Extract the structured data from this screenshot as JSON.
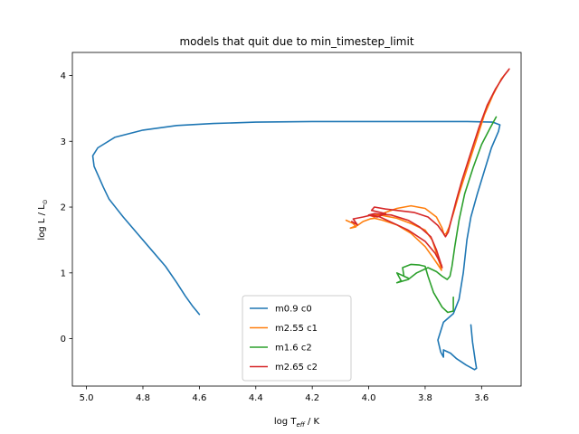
{
  "chart_data": {
    "type": "line",
    "title": "models that quit due to min_timestep_limit",
    "xlabel": {
      "prefix": "log T",
      "sub": "eff",
      "suffix": " / K"
    },
    "ylabel": {
      "prefix": "log L / L",
      "sub": "⊙"
    },
    "x_inverted": true,
    "xlim": [
      5.05,
      3.46
    ],
    "ylim": [
      -0.72,
      4.35
    ],
    "xticks": [
      5.0,
      4.8,
      4.6,
      4.4,
      4.2,
      4.0,
      3.8,
      3.6
    ],
    "xtick_labels": [
      "5.0",
      "4.8",
      "4.6",
      "4.4",
      "4.2",
      "4.0",
      "3.8",
      "3.6"
    ],
    "yticks": [
      0,
      1,
      2,
      3,
      4
    ],
    "ytick_labels": [
      "0",
      "1",
      "2",
      "3",
      "4"
    ],
    "legend_position": "lower-center",
    "series": [
      {
        "name": "m0.9 c0",
        "color": "#1f77b4",
        "points": [
          [
            3.638,
            0.21
          ],
          [
            3.632,
            -0.05
          ],
          [
            3.622,
            -0.35
          ],
          [
            3.618,
            -0.45
          ],
          [
            3.625,
            -0.47
          ],
          [
            3.655,
            -0.4
          ],
          [
            3.69,
            -0.3
          ],
          [
            3.71,
            -0.22
          ],
          [
            3.735,
            -0.17
          ],
          [
            3.735,
            -0.28
          ],
          [
            3.745,
            -0.2
          ],
          [
            3.755,
            -0.02
          ],
          [
            3.735,
            0.25
          ],
          [
            3.7,
            0.38
          ],
          [
            3.68,
            0.6
          ],
          [
            3.665,
            1.0
          ],
          [
            3.652,
            1.5
          ],
          [
            3.638,
            1.85
          ],
          [
            3.615,
            2.2
          ],
          [
            3.59,
            2.55
          ],
          [
            3.565,
            2.9
          ],
          [
            3.54,
            3.15
          ],
          [
            3.535,
            3.25
          ],
          [
            3.56,
            3.29
          ],
          [
            3.65,
            3.3
          ],
          [
            3.8,
            3.3
          ],
          [
            4.0,
            3.3
          ],
          [
            4.2,
            3.3
          ],
          [
            4.4,
            3.29
          ],
          [
            4.55,
            3.27
          ],
          [
            4.68,
            3.24
          ],
          [
            4.8,
            3.17
          ],
          [
            4.9,
            3.06
          ],
          [
            4.96,
            2.9
          ],
          [
            4.978,
            2.78
          ],
          [
            4.973,
            2.62
          ],
          [
            4.94,
            2.3
          ],
          [
            4.92,
            2.12
          ],
          [
            4.87,
            1.85
          ],
          [
            4.82,
            1.6
          ],
          [
            4.77,
            1.35
          ],
          [
            4.72,
            1.1
          ],
          [
            4.68,
            0.85
          ],
          [
            4.65,
            0.65
          ],
          [
            4.625,
            0.5
          ],
          [
            4.6,
            0.37
          ]
        ]
      },
      {
        "name": "m2.55 c1",
        "color": "#ff7f0e",
        "points": [
          [
            4.08,
            1.8
          ],
          [
            4.055,
            1.75
          ],
          [
            4.045,
            1.7
          ],
          [
            4.065,
            1.68
          ],
          [
            4.04,
            1.72
          ],
          [
            4.02,
            1.78
          ],
          [
            3.995,
            1.82
          ],
          [
            3.98,
            1.83
          ],
          [
            3.95,
            1.8
          ],
          [
            3.9,
            1.73
          ],
          [
            3.85,
            1.6
          ],
          [
            3.8,
            1.4
          ],
          [
            3.77,
            1.22
          ],
          [
            3.748,
            1.08
          ],
          [
            3.742,
            1.04
          ],
          [
            3.745,
            1.1
          ],
          [
            3.76,
            1.3
          ],
          [
            3.775,
            1.5
          ],
          [
            3.8,
            1.65
          ],
          [
            3.85,
            1.75
          ],
          [
            3.9,
            1.83
          ],
          [
            3.96,
            1.88
          ],
          [
            4.0,
            1.88
          ],
          [
            3.98,
            1.85
          ],
          [
            3.94,
            1.92
          ],
          [
            3.9,
            1.98
          ],
          [
            3.85,
            2.02
          ],
          [
            3.8,
            1.98
          ],
          [
            3.76,
            1.85
          ],
          [
            3.74,
            1.68
          ],
          [
            3.733,
            1.58
          ],
          [
            3.725,
            1.6
          ],
          [
            3.715,
            1.7
          ],
          [
            3.7,
            1.9
          ],
          [
            3.68,
            2.2
          ],
          [
            3.65,
            2.6
          ],
          [
            3.62,
            3.0
          ],
          [
            3.59,
            3.4
          ],
          [
            3.56,
            3.7
          ],
          [
            3.53,
            3.95
          ],
          [
            3.505,
            4.08
          ]
        ]
      },
      {
        "name": "m1.6 c2",
        "color": "#2ca02c",
        "points": [
          [
            3.7,
            0.63
          ],
          [
            3.7,
            0.42
          ],
          [
            3.72,
            0.4
          ],
          [
            3.74,
            0.48
          ],
          [
            3.77,
            0.7
          ],
          [
            3.79,
            0.95
          ],
          [
            3.8,
            1.1
          ],
          [
            3.82,
            1.12
          ],
          [
            3.85,
            1.13
          ],
          [
            3.88,
            1.08
          ],
          [
            3.875,
            0.95
          ],
          [
            3.86,
            0.92
          ],
          [
            3.89,
            0.98
          ],
          [
            3.9,
            1.0
          ],
          [
            3.885,
            0.88
          ],
          [
            3.9,
            0.85
          ],
          [
            3.86,
            0.9
          ],
          [
            3.83,
            1.0
          ],
          [
            3.79,
            1.08
          ],
          [
            3.76,
            1.02
          ],
          [
            3.74,
            0.95
          ],
          [
            3.722,
            0.9
          ],
          [
            3.712,
            0.95
          ],
          [
            3.705,
            1.1
          ],
          [
            3.695,
            1.4
          ],
          [
            3.68,
            1.8
          ],
          [
            3.66,
            2.2
          ],
          [
            3.63,
            2.6
          ],
          [
            3.6,
            2.95
          ],
          [
            3.57,
            3.2
          ],
          [
            3.548,
            3.37
          ]
        ]
      },
      {
        "name": "m2.65 c2",
        "color": "#d62728",
        "points": [
          [
            4.06,
            1.78
          ],
          [
            4.04,
            1.73
          ],
          [
            4.055,
            1.82
          ],
          [
            4.02,
            1.85
          ],
          [
            3.99,
            1.88
          ],
          [
            3.96,
            1.85
          ],
          [
            3.91,
            1.75
          ],
          [
            3.86,
            1.65
          ],
          [
            3.8,
            1.48
          ],
          [
            3.765,
            1.3
          ],
          [
            3.742,
            1.12
          ],
          [
            3.74,
            1.08
          ],
          [
            3.745,
            1.15
          ],
          [
            3.76,
            1.35
          ],
          [
            3.78,
            1.55
          ],
          [
            3.82,
            1.7
          ],
          [
            3.86,
            1.8
          ],
          [
            3.92,
            1.88
          ],
          [
            3.98,
            1.9
          ],
          [
            4.0,
            1.88
          ],
          [
            3.97,
            1.85
          ],
          [
            3.94,
            1.9
          ],
          [
            3.99,
            1.95
          ],
          [
            3.98,
            2.0
          ],
          [
            3.94,
            1.97
          ],
          [
            3.9,
            1.95
          ],
          [
            3.84,
            1.92
          ],
          [
            3.79,
            1.85
          ],
          [
            3.755,
            1.72
          ],
          [
            3.735,
            1.6
          ],
          [
            3.728,
            1.55
          ],
          [
            3.718,
            1.62
          ],
          [
            3.705,
            1.85
          ],
          [
            3.69,
            2.1
          ],
          [
            3.67,
            2.4
          ],
          [
            3.64,
            2.8
          ],
          [
            3.61,
            3.2
          ],
          [
            3.58,
            3.55
          ],
          [
            3.55,
            3.8
          ],
          [
            3.52,
            4.0
          ],
          [
            3.502,
            4.1
          ]
        ]
      }
    ]
  }
}
